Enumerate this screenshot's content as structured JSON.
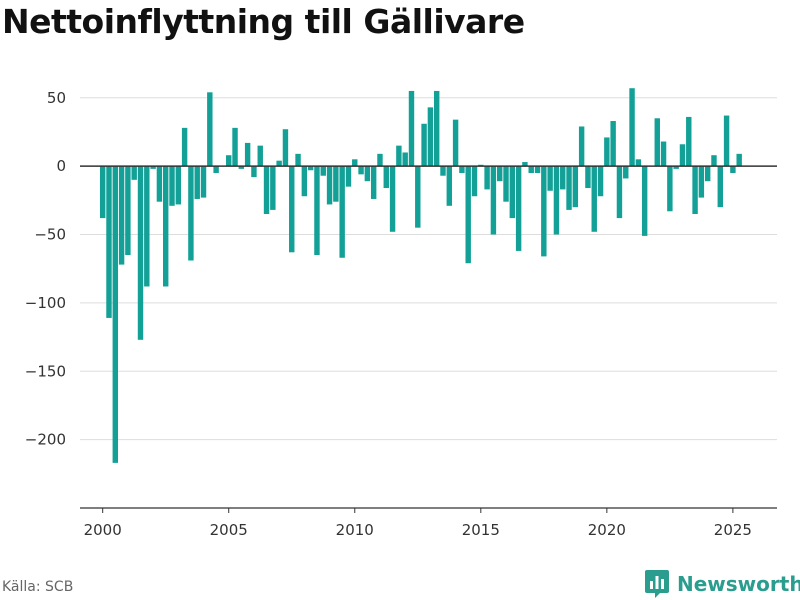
{
  "title": "Nettoinflyttning till Gällivare",
  "source": "Källa: SCB",
  "brand": {
    "name": "Newsworthy",
    "icon": "newsworthy-logo-icon"
  },
  "colors": {
    "bar": "#13a097",
    "grid": "#dddddd",
    "zero_line": "#333333",
    "brand": "#2a9d8f"
  },
  "chart_data": {
    "type": "bar",
    "title": "Nettoinflyttning till Gällivare",
    "xlabel": "",
    "ylabel": "",
    "x_ticks": [
      2000,
      2005,
      2010,
      2015,
      2020,
      2025
    ],
    "y_ticks": [
      50,
      0,
      -50,
      -100,
      -150,
      -200
    ],
    "y_tick_labels": [
      "50",
      "0",
      "−50",
      "−100",
      "−150",
      "−200"
    ],
    "xlim": [
      1999.1,
      2026.75
    ],
    "ylim": [
      -250,
      63
    ],
    "grid": true,
    "x": [
      2000.0,
      2000.25,
      2000.5,
      2000.75,
      2001.0,
      2001.25,
      2001.5,
      2001.75,
      2002.0,
      2002.25,
      2002.5,
      2002.75,
      2003.0,
      2003.25,
      2003.5,
      2003.75,
      2004.0,
      2004.25,
      2004.5,
      2004.75,
      2005.0,
      2005.25,
      2005.5,
      2005.75,
      2006.0,
      2006.25,
      2006.5,
      2006.75,
      2007.0,
      2007.25,
      2007.5,
      2007.75,
      2008.0,
      2008.25,
      2008.5,
      2008.75,
      2009.0,
      2009.25,
      2009.5,
      2009.75,
      2010.0,
      2010.25,
      2010.5,
      2010.75,
      2011.0,
      2011.25,
      2011.5,
      2011.75,
      2012.0,
      2012.25,
      2012.5,
      2012.75,
      2013.0,
      2013.25,
      2013.5,
      2013.75,
      2014.0,
      2014.25,
      2014.5,
      2014.75,
      2015.0,
      2015.25,
      2015.5,
      2015.75,
      2016.0,
      2016.25,
      2016.5,
      2016.75,
      2017.0,
      2017.25,
      2017.5,
      2017.75,
      2018.0,
      2018.25,
      2018.5,
      2018.75,
      2019.0,
      2019.25,
      2019.5,
      2019.75,
      2020.0,
      2020.25,
      2020.5,
      2020.75,
      2021.0,
      2021.25,
      2021.5,
      2021.75,
      2022.0,
      2022.25,
      2022.5,
      2022.75,
      2023.0,
      2023.25,
      2023.5,
      2023.75,
      2024.0,
      2024.25,
      2024.5,
      2024.75,
      2025.0,
      2025.25
    ],
    "values": [
      -38,
      -111,
      -217,
      -72,
      -65,
      -10,
      -127,
      -88,
      -2,
      -26,
      -88,
      -29,
      -28,
      28,
      -69,
      -24,
      -23,
      54,
      -5,
      0,
      8,
      28,
      -2,
      17,
      -8,
      15,
      -35,
      -32,
      4,
      27,
      -63,
      9,
      -22,
      -3,
      -65,
      -7,
      -28,
      -26,
      -67,
      -15,
      5,
      -6,
      -11,
      -24,
      9,
      -16,
      -48,
      15,
      10,
      55,
      -45,
      31,
      43,
      55,
      -7,
      -29,
      34,
      -5,
      -71,
      -22,
      1,
      -17,
      -50,
      -11,
      -26,
      -38,
      -62,
      3,
      -5,
      -5,
      -66,
      -18,
      -50,
      -17,
      -32,
      -30,
      29,
      -16,
      -48,
      -22,
      21,
      33,
      -38,
      -9,
      57,
      5,
      -51,
      0,
      35,
      18,
      -33,
      -2,
      16,
      36,
      -35,
      -23,
      -11,
      8,
      -30,
      37,
      -5,
      9
    ]
  }
}
